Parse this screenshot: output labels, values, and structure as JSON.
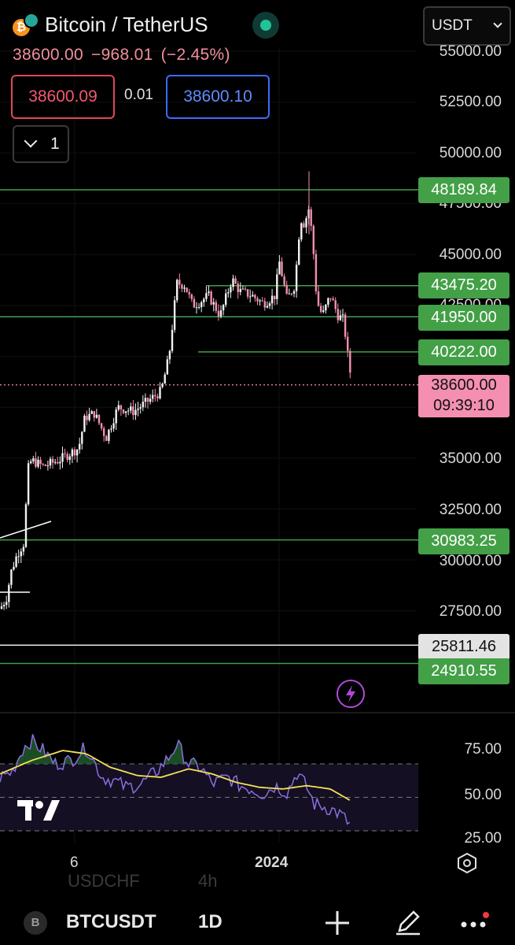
{
  "header": {
    "title": "Bitcoin / TetherUS",
    "last": "38600.00",
    "change": "−968.01",
    "change_pct": "(−2.45%)",
    "bid": "38600.09",
    "spread": "0.01",
    "ask": "38600.10",
    "collapse_count": "1",
    "currency": "USDT"
  },
  "price_axis": {
    "ticks": [
      "55000.00",
      "52500.00",
      "50000.00",
      "47500.00",
      "45000.00",
      "42500.00",
      "35000.00",
      "32500.00",
      "30000.00",
      "27500.00"
    ]
  },
  "level_labels": [
    "48189.84",
    "43475.20",
    "41950.00",
    "40222.00",
    "30983.25",
    "25811.46",
    "24910.55"
  ],
  "current_price": {
    "price": "38600.00",
    "countdown": "09:39:10"
  },
  "rsi_axis": {
    "ticks": [
      "75.00",
      "50.00",
      "25.00"
    ]
  },
  "time_axis": {
    "ticks": [
      "6",
      "2024"
    ]
  },
  "ghost_text": {
    "symbol": "USDCHF",
    "interval": "4h"
  },
  "bottom_bar": {
    "symbol": "BTCUSDT",
    "interval": "1D",
    "exchange_icon": "B"
  },
  "colors": {
    "up": "#f2f2f2",
    "down": "#f48fb1",
    "level": "#43a047",
    "rsi": "#8c6ee0",
    "rsi_ma": "#f5e25b"
  }
}
